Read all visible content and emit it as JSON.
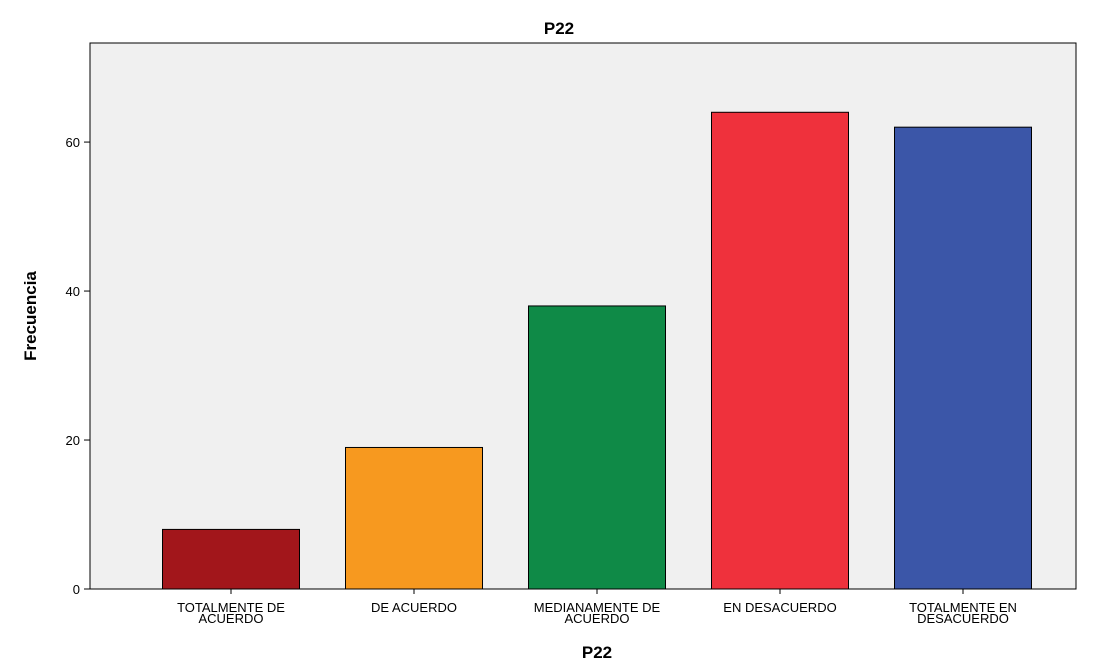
{
  "chart_data": {
    "type": "bar",
    "title": "P22",
    "xlabel": "P22",
    "ylabel": "Frecuencia",
    "categories": [
      [
        "TOTALMENTE DE",
        "ACUERDO"
      ],
      [
        "DE ACUERDO"
      ],
      [
        "MEDIANAMENTE DE",
        "ACUERDO"
      ],
      [
        "EN DESACUERDO"
      ],
      [
        "TOTALMENTE EN",
        "DESACUERDO"
      ]
    ],
    "values": [
      8,
      19,
      38,
      64,
      62
    ],
    "colors": [
      "#a2161b",
      "#f7991f",
      "#0f8a47",
      "#ef313c",
      "#3b56a8"
    ],
    "ylim": [
      0,
      73.3
    ],
    "yticks": [
      0,
      20,
      40,
      60
    ],
    "grid": false,
    "plot_background": "#f0f0f0"
  }
}
